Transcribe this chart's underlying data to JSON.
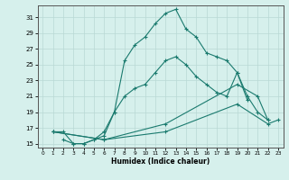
{
  "xlabel": "Humidex (Indice chaleur)",
  "bg_color": "#d6f0ec",
  "line_color": "#1a7a6e",
  "grid_color": "#b8d8d4",
  "xlim": [
    -0.5,
    23.5
  ],
  "ylim": [
    14.5,
    32.5
  ],
  "xticks": [
    0,
    1,
    2,
    3,
    4,
    5,
    6,
    7,
    8,
    9,
    10,
    11,
    12,
    13,
    14,
    15,
    16,
    17,
    18,
    19,
    20,
    21,
    22,
    23
  ],
  "yticks": [
    15,
    17,
    19,
    21,
    23,
    25,
    27,
    29,
    31
  ],
  "line1_x": [
    1,
    2,
    3,
    4,
    5,
    6,
    7,
    8,
    9,
    10,
    11,
    12,
    13,
    14,
    15,
    16,
    17,
    18,
    19,
    20,
    21,
    22
  ],
  "line1_y": [
    16.5,
    16.5,
    15.0,
    15.0,
    15.5,
    16.5,
    19.0,
    25.5,
    27.5,
    28.5,
    30.2,
    31.5,
    32.0,
    29.5,
    28.5,
    26.5,
    26.0,
    25.5,
    24.0,
    21.0,
    19.0,
    18.0
  ],
  "line2_x": [
    2,
    3,
    4,
    5,
    6,
    7,
    8,
    9,
    10,
    11,
    12,
    13,
    14,
    15,
    16,
    17,
    18,
    19,
    20
  ],
  "line2_y": [
    15.5,
    15.0,
    15.0,
    15.5,
    16.0,
    19.0,
    21.0,
    22.0,
    22.5,
    24.0,
    25.5,
    26.0,
    25.0,
    23.5,
    22.5,
    21.5,
    21.0,
    24.0,
    20.5
  ],
  "line3_x": [
    1,
    6,
    12,
    19,
    21,
    22
  ],
  "line3_y": [
    16.5,
    15.5,
    17.5,
    22.5,
    21.0,
    18.0
  ],
  "line4_x": [
    1,
    6,
    12,
    19,
    22,
    23
  ],
  "line4_y": [
    16.5,
    15.5,
    16.5,
    20.0,
    17.5,
    18.0
  ]
}
